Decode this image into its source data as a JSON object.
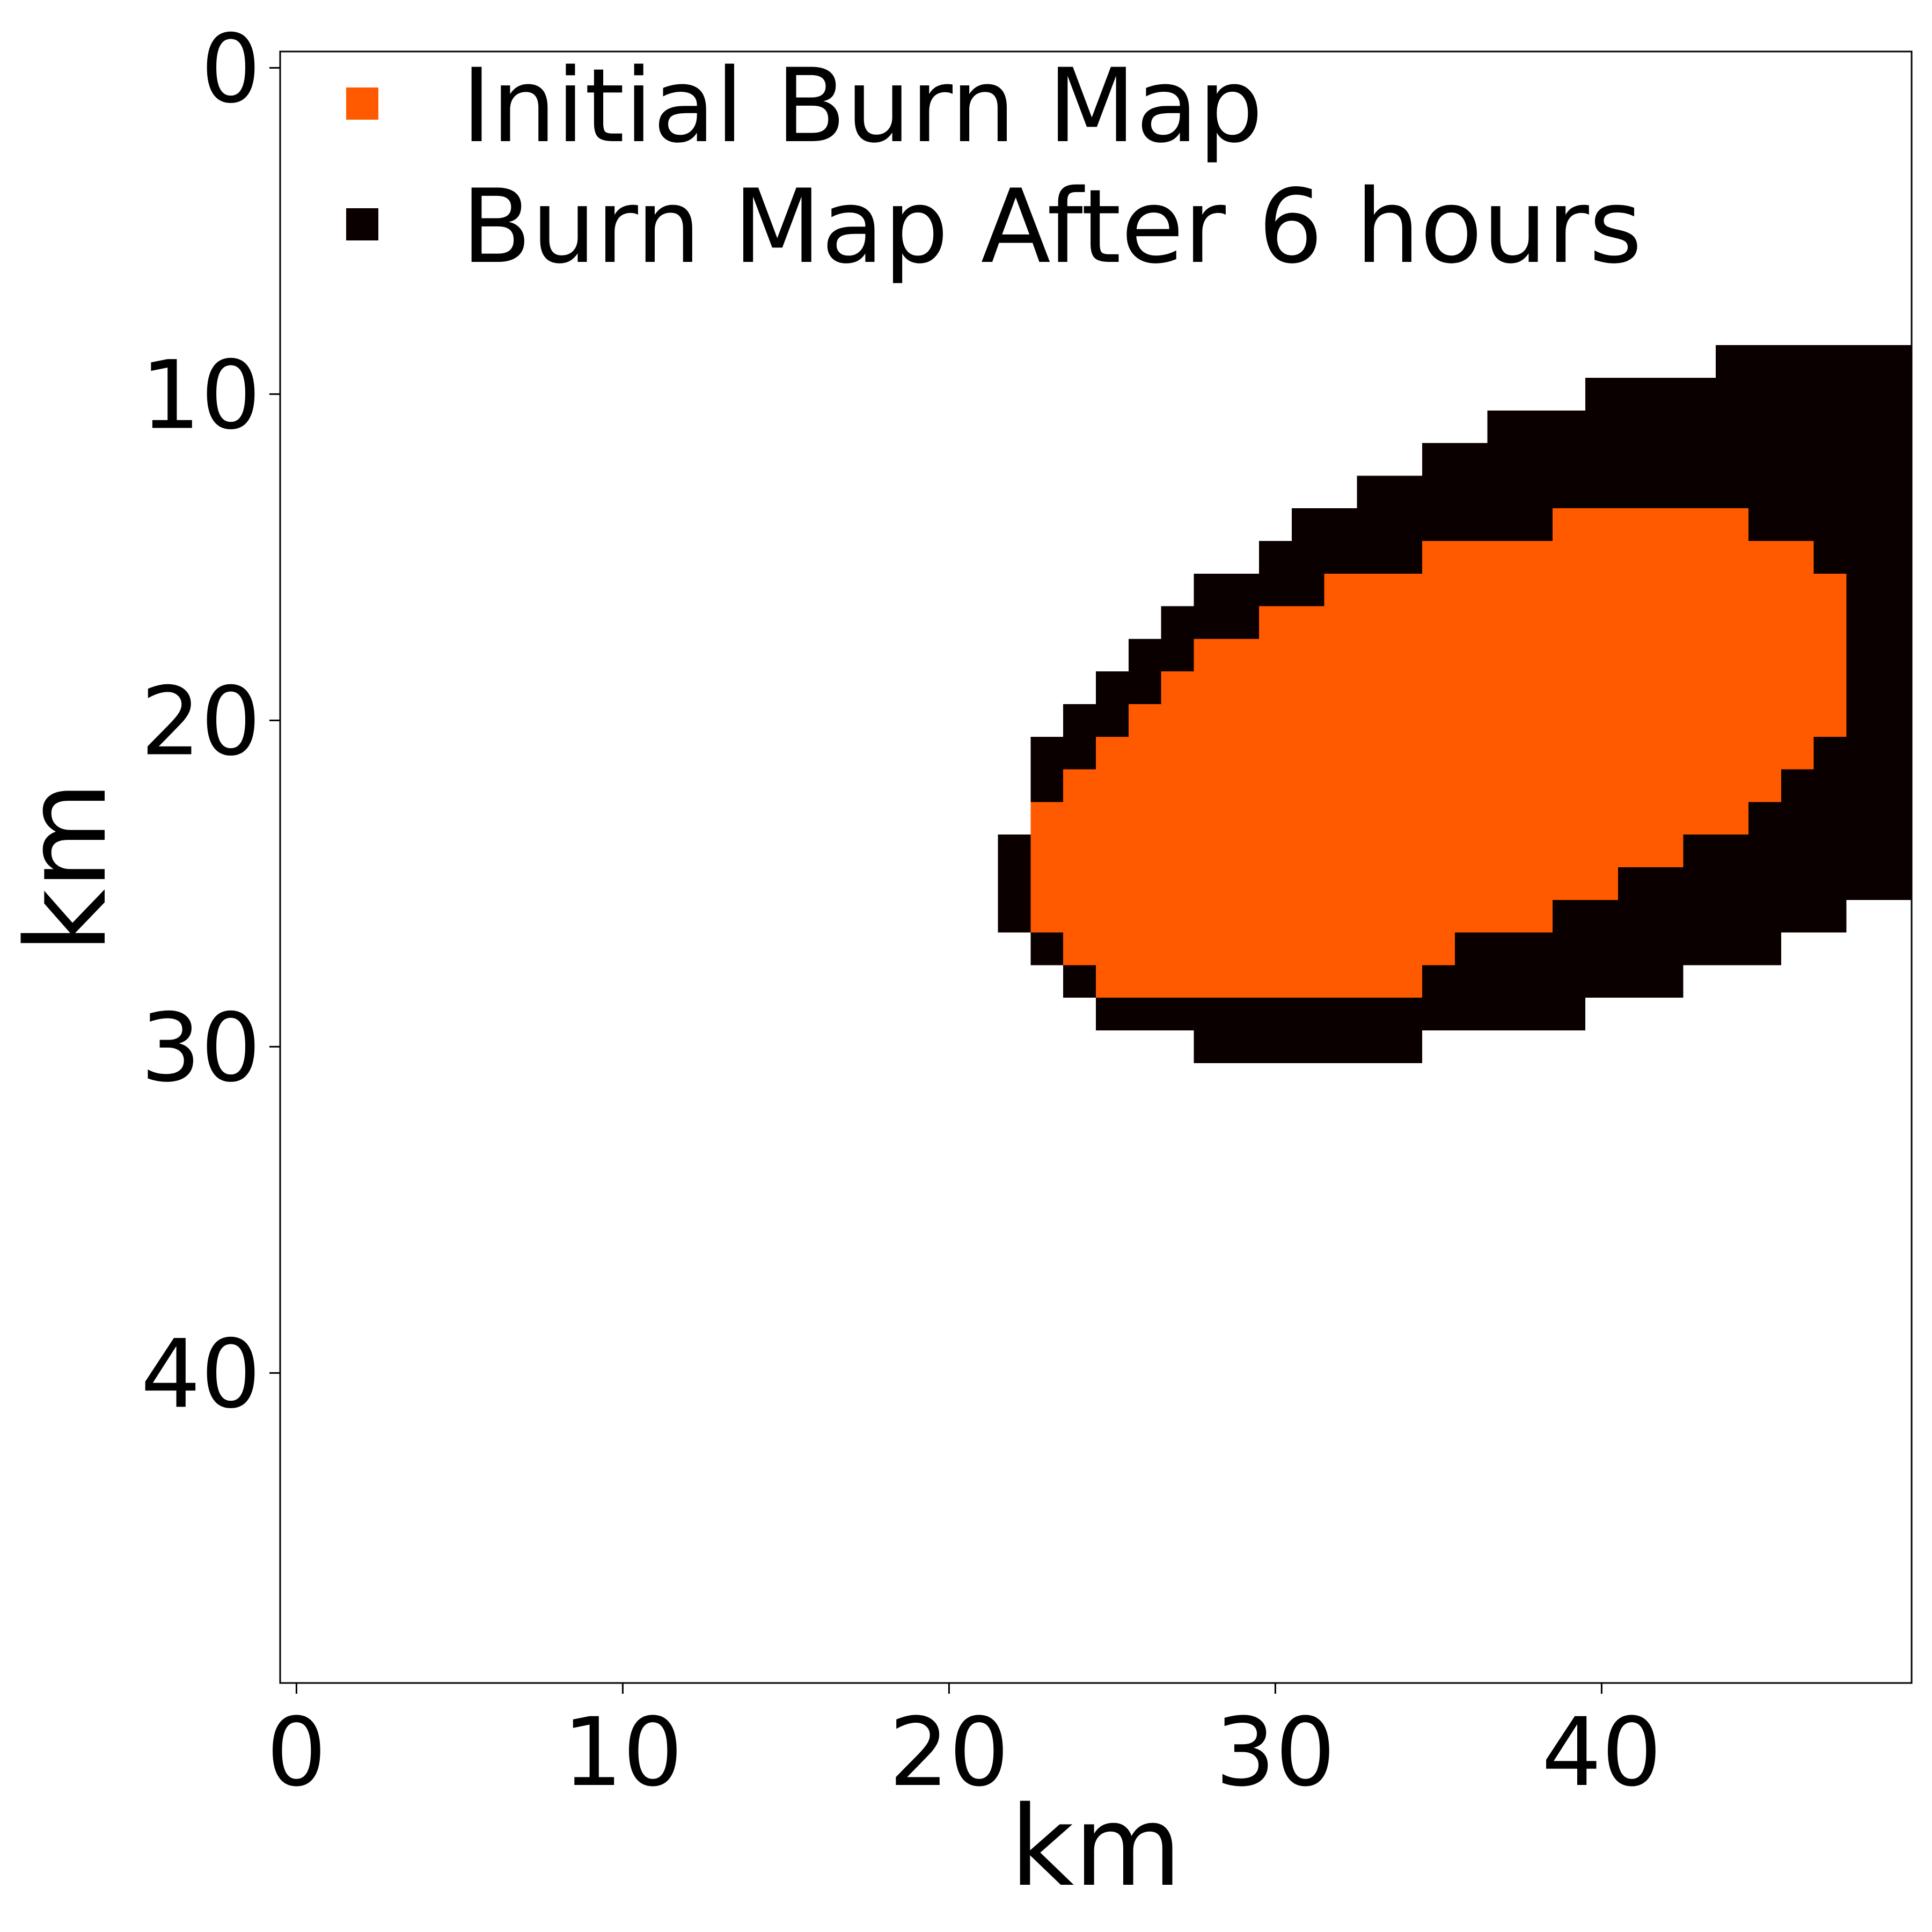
{
  "chart_data": {
    "type": "heatmap",
    "xlabel": "km",
    "ylabel": "km",
    "xlim": [
      -0.5,
      49.5
    ],
    "ylim": [
      49.5,
      -0.5
    ],
    "y_inverted": true,
    "x_ticks": [
      0,
      10,
      20,
      30,
      40
    ],
    "y_ticks": [
      0,
      10,
      20,
      30,
      40
    ],
    "grid": false,
    "legend_position": "top-left",
    "cell_size_km": 1,
    "series": [
      {
        "name": "Initial Burn Map",
        "color": "#ff5a00",
        "rows": [
          {
            "y": 14,
            "x_ranges": [
              [
                39,
                44
              ]
            ]
          },
          {
            "y": 15,
            "x_ranges": [
              [
                35,
                46
              ]
            ]
          },
          {
            "y": 16,
            "x_ranges": [
              [
                32,
                47
              ]
            ]
          },
          {
            "y": 17,
            "x_ranges": [
              [
                30,
                47
              ]
            ]
          },
          {
            "y": 18,
            "x_ranges": [
              [
                28,
                47
              ]
            ]
          },
          {
            "y": 19,
            "x_ranges": [
              [
                27,
                47
              ]
            ]
          },
          {
            "y": 20,
            "x_ranges": [
              [
                26,
                47
              ]
            ]
          },
          {
            "y": 21,
            "x_ranges": [
              [
                25,
                46
              ]
            ]
          },
          {
            "y": 22,
            "x_ranges": [
              [
                24,
                45
              ]
            ]
          },
          {
            "y": 23,
            "x_ranges": [
              [
                23,
                44
              ]
            ]
          },
          {
            "y": 24,
            "x_ranges": [
              [
                23,
                42
              ]
            ]
          },
          {
            "y": 25,
            "x_ranges": [
              [
                23,
                41
              ]
            ]
          },
          {
            "y": 26,
            "x_ranges": [
              [
                23,
                40
              ]
            ]
          },
          {
            "y": 27,
            "x_ranges": [
              [
                24,
                37
              ]
            ]
          },
          {
            "y": 28,
            "x_ranges": [
              [
                25,
                34
              ]
            ]
          }
        ]
      },
      {
        "name": "Burn Map After 6 hours",
        "color": "#0b0000",
        "rows": [
          {
            "y": 9,
            "x_ranges": [
              [
                44,
                49
              ]
            ]
          },
          {
            "y": 10,
            "x_ranges": [
              [
                40,
                49
              ]
            ]
          },
          {
            "y": 11,
            "x_ranges": [
              [
                37,
                49
              ]
            ]
          },
          {
            "y": 12,
            "x_ranges": [
              [
                35,
                49
              ]
            ]
          },
          {
            "y": 13,
            "x_ranges": [
              [
                33,
                49
              ]
            ]
          },
          {
            "y": 14,
            "x_ranges": [
              [
                31,
                38
              ],
              [
                45,
                49
              ]
            ]
          },
          {
            "y": 15,
            "x_ranges": [
              [
                30,
                34
              ],
              [
                47,
                49
              ]
            ]
          },
          {
            "y": 16,
            "x_ranges": [
              [
                28,
                31
              ],
              [
                48,
                49
              ]
            ]
          },
          {
            "y": 17,
            "x_ranges": [
              [
                27,
                29
              ],
              [
                48,
                49
              ]
            ]
          },
          {
            "y": 18,
            "x_ranges": [
              [
                26,
                27
              ],
              [
                48,
                49
              ]
            ]
          },
          {
            "y": 19,
            "x_ranges": [
              [
                25,
                26
              ],
              [
                48,
                49
              ]
            ]
          },
          {
            "y": 20,
            "x_ranges": [
              [
                24,
                25
              ],
              [
                48,
                49
              ]
            ]
          },
          {
            "y": 21,
            "x_ranges": [
              [
                23,
                24
              ],
              [
                47,
                49
              ]
            ]
          },
          {
            "y": 22,
            "x_ranges": [
              [
                23,
                23
              ],
              [
                46,
                49
              ]
            ]
          },
          {
            "y": 23,
            "x_ranges": [
              [
                45,
                49
              ]
            ]
          },
          {
            "y": 24,
            "x_ranges": [
              [
                22,
                22
              ],
              [
                43,
                49
              ]
            ]
          },
          {
            "y": 25,
            "x_ranges": [
              [
                22,
                22
              ],
              [
                41,
                49
              ]
            ]
          },
          {
            "y": 26,
            "x_ranges": [
              [
                22,
                22
              ],
              [
                39,
                47
              ]
            ]
          },
          {
            "y": 27,
            "x_ranges": [
              [
                23,
                23
              ],
              [
                36,
                45
              ]
            ]
          },
          {
            "y": 28,
            "x_ranges": [
              [
                24,
                24
              ],
              [
                35,
                42
              ]
            ]
          },
          {
            "y": 29,
            "x_ranges": [
              [
                25,
                39
              ]
            ]
          },
          {
            "y": 30,
            "x_ranges": [
              [
                28,
                34
              ]
            ]
          }
        ]
      }
    ]
  }
}
